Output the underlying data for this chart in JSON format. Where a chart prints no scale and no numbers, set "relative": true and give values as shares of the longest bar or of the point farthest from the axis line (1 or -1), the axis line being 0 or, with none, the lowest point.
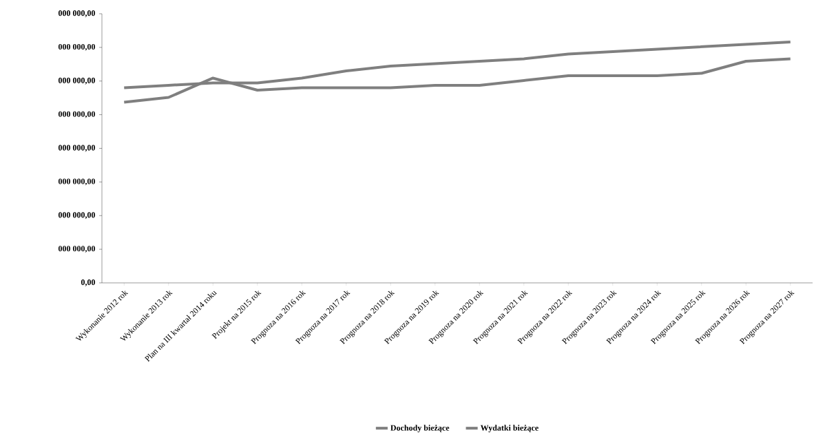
{
  "chart_data": {
    "type": "line",
    "relative": true,
    "categories": [
      "Wykonanie 2012 rok",
      "Wykonanie 2013 rok",
      "Plan na III kwartał 2014 roku",
      "Projekt na 2015 rok",
      "Prognoza na 2016 rok",
      "Prognoza na 2017 rok",
      "Prognoza na 2018 rok",
      "Prognoza na 2019 rok",
      "Prognoza na 2020 rok",
      "Prognoza na 2021 rok",
      "Prognoza na 2022 rok",
      "Prognoza na 2023 rok",
      "Prognoza na 2024 rok",
      "Prognoza na 2025 rok",
      "Prognoza na 2026 rok",
      "Prognoza na 2027 rok"
    ],
    "series": [
      {
        "name": "Dochody bieżące",
        "color": "#7f7f7f",
        "values": [
          0.81,
          0.82,
          0.83,
          0.83,
          0.85,
          0.88,
          0.9,
          0.91,
          0.92,
          0.93,
          0.95,
          0.96,
          0.97,
          0.98,
          0.99,
          1.0
        ]
      },
      {
        "name": "Wydatki bieżące",
        "color": "#7f7f7f",
        "values": [
          0.75,
          0.77,
          0.85,
          0.8,
          0.81,
          0.81,
          0.81,
          0.82,
          0.82,
          0.84,
          0.86,
          0.86,
          0.86,
          0.87,
          0.92,
          0.93
        ]
      }
    ],
    "annotations": [
      "0,00",
      "000 000,00",
      "000 000,00",
      "000 000,00",
      "000 000,00",
      "000 000,00",
      "000 000,00",
      "000 000,00",
      "000 000,00"
    ],
    "grid": false,
    "legend": "bottom",
    "marker": "none",
    "line_style": "solid"
  }
}
